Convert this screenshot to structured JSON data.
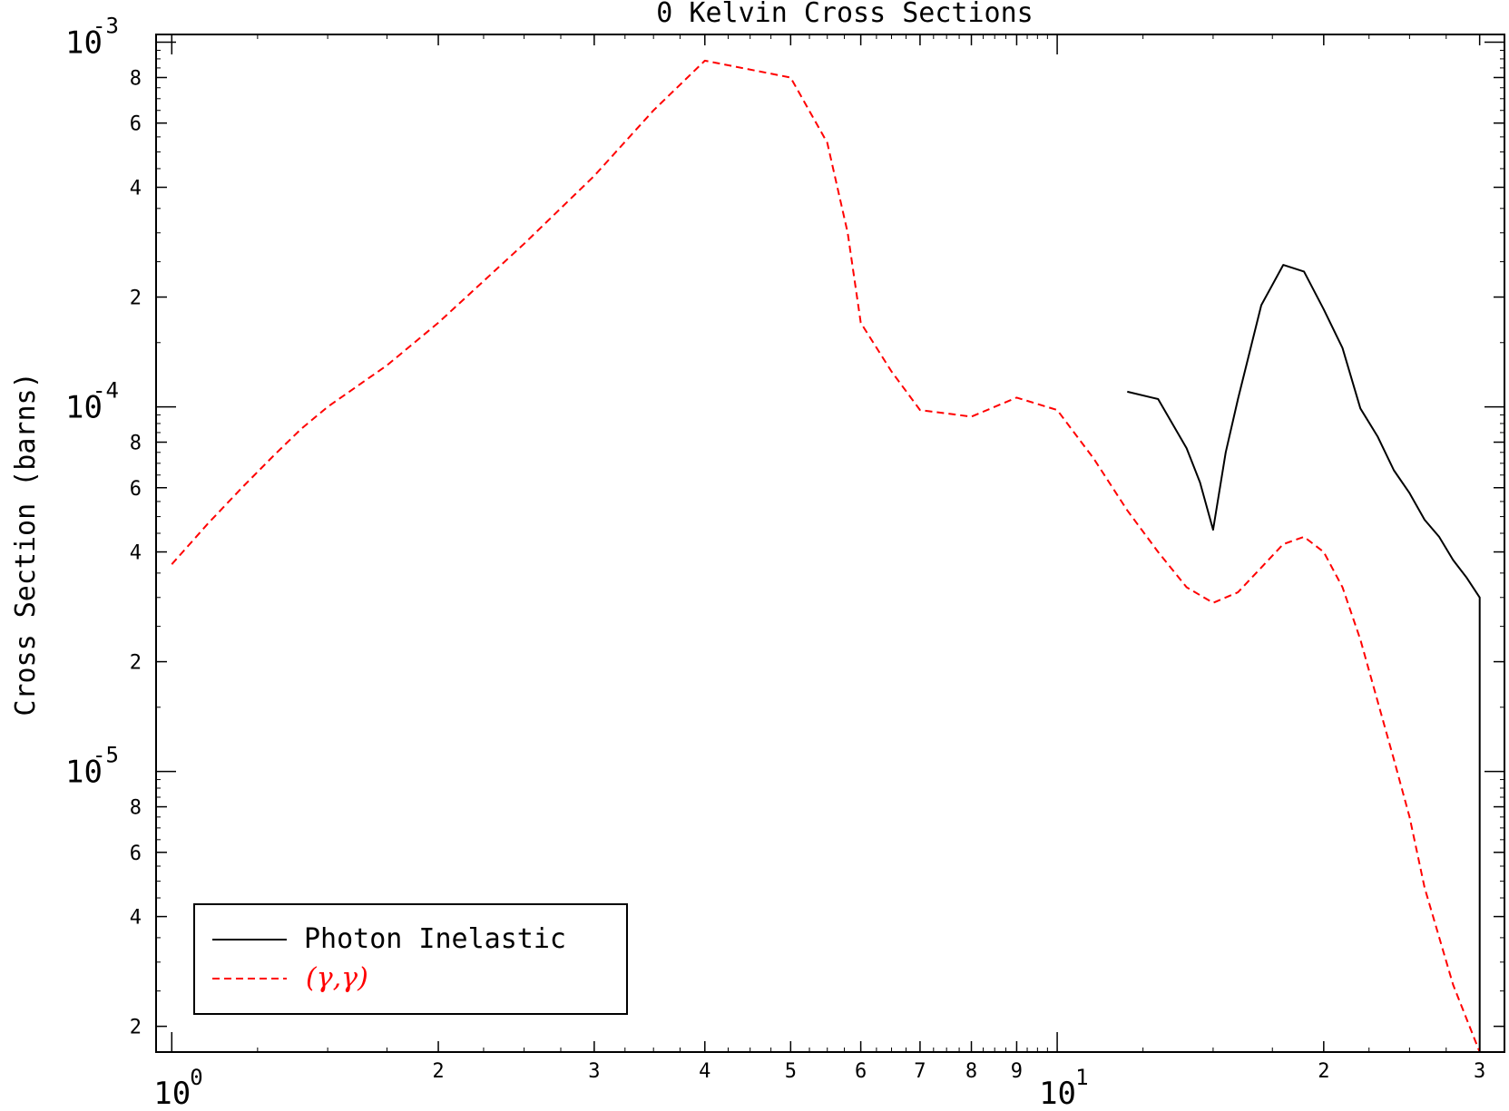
{
  "chart_data": {
    "type": "line",
    "title": "0 Kelvin Cross Sections",
    "xlabel": "",
    "ylabel": "Cross Section (barns)",
    "x_scale": "log",
    "y_scale": "log",
    "xlim": [
      0.96,
      32
    ],
    "ylim": [
      1.7e-06,
      0.00105
    ],
    "x_ticks": {
      "decades": [
        {
          "value": 1,
          "base": "10",
          "exp": "0"
        },
        {
          "value": 10,
          "base": "10",
          "exp": "1"
        }
      ],
      "minor": [
        {
          "value": 2,
          "label": "2"
        },
        {
          "value": 3,
          "label": "3"
        },
        {
          "value": 4,
          "label": "4"
        },
        {
          "value": 5,
          "label": "5"
        },
        {
          "value": 6,
          "label": "6"
        },
        {
          "value": 7,
          "label": "7"
        },
        {
          "value": 8,
          "label": "8"
        },
        {
          "value": 9,
          "label": "9"
        },
        {
          "value": 20,
          "label": "2"
        },
        {
          "value": 30,
          "label": "3"
        }
      ]
    },
    "y_ticks": {
      "decades": [
        {
          "value": 1e-05,
          "base": "10",
          "exp": "-5"
        },
        {
          "value": 0.0001,
          "base": "10",
          "exp": "-4"
        },
        {
          "value": 0.001,
          "base": "10",
          "exp": "-3"
        }
      ],
      "minor": [
        {
          "value": 2e-06,
          "label": "2"
        },
        {
          "value": 4e-06,
          "label": "4"
        },
        {
          "value": 6e-06,
          "label": "6"
        },
        {
          "value": 8e-06,
          "label": "8"
        },
        {
          "value": 2e-05,
          "label": "2"
        },
        {
          "value": 4e-05,
          "label": "4"
        },
        {
          "value": 6e-05,
          "label": "6"
        },
        {
          "value": 8e-05,
          "label": "8"
        },
        {
          "value": 0.0002,
          "label": "2"
        },
        {
          "value": 0.0004,
          "label": "4"
        },
        {
          "value": 0.0006,
          "label": "6"
        },
        {
          "value": 0.0008,
          "label": "8"
        }
      ]
    },
    "legend_position": "bottom-left",
    "grid": false,
    "series": [
      {
        "name": "Photon Inelastic",
        "color": "#000000",
        "dash": "solid",
        "points": [
          [
            12.0,
            0.00011
          ],
          [
            13.0,
            0.000105
          ],
          [
            14.0,
            7.7e-05
          ],
          [
            14.5,
            6.2e-05
          ],
          [
            15.0,
            4.6e-05
          ],
          [
            15.5,
            7.5e-05
          ],
          [
            16.0,
            0.000105
          ],
          [
            17.0,
            0.00019
          ],
          [
            18.0,
            0.000245
          ],
          [
            19.0,
            0.000235
          ],
          [
            20.0,
            0.000185
          ],
          [
            21.0,
            0.000145
          ],
          [
            22.0,
            9.9e-05
          ],
          [
            23.0,
            8.3e-05
          ],
          [
            24.0,
            6.7e-05
          ],
          [
            25.0,
            5.8e-05
          ],
          [
            26.0,
            4.9e-05
          ],
          [
            27.0,
            4.4e-05
          ],
          [
            28.0,
            3.8e-05
          ],
          [
            29.0,
            3.4e-05
          ],
          [
            30.0,
            3e-05
          ],
          [
            30.0,
            1.7e-06
          ]
        ]
      },
      {
        "name": "(γ,γ)",
        "color": "#ff0000",
        "dash": "dashed",
        "points": [
          [
            1.0,
            3.7e-05
          ],
          [
            1.1,
            4.8e-05
          ],
          [
            1.2,
            6e-05
          ],
          [
            1.3,
            7.3e-05
          ],
          [
            1.4,
            8.7e-05
          ],
          [
            1.5,
            0.0001
          ],
          [
            1.75,
            0.00013
          ],
          [
            2.0,
            0.00017
          ],
          [
            2.5,
            0.00028
          ],
          [
            3.0,
            0.00043
          ],
          [
            3.5,
            0.00065
          ],
          [
            4.0,
            0.00089
          ],
          [
            5.0,
            0.0008
          ],
          [
            5.5,
            0.00053
          ],
          [
            5.8,
            0.0003
          ],
          [
            6.0,
            0.00017
          ],
          [
            6.5,
            0.000125
          ],
          [
            7.0,
            9.8e-05
          ],
          [
            8.0,
            9.4e-05
          ],
          [
            9.0,
            0.000106
          ],
          [
            10.0,
            9.8e-05
          ],
          [
            11.0,
            7.2e-05
          ],
          [
            12.0,
            5.2e-05
          ],
          [
            13.0,
            4e-05
          ],
          [
            14.0,
            3.2e-05
          ],
          [
            15.0,
            2.9e-05
          ],
          [
            16.0,
            3.1e-05
          ],
          [
            18.0,
            4.2e-05
          ],
          [
            19.0,
            4.4e-05
          ],
          [
            20.0,
            4e-05
          ],
          [
            21.0,
            3.2e-05
          ],
          [
            22.0,
            2.3e-05
          ],
          [
            24.0,
            1.08e-05
          ],
          [
            25.0,
            7.5e-06
          ],
          [
            26.0,
            4.8e-06
          ],
          [
            28.0,
            2.6e-06
          ],
          [
            30.0,
            1.7e-06
          ]
        ]
      }
    ]
  }
}
